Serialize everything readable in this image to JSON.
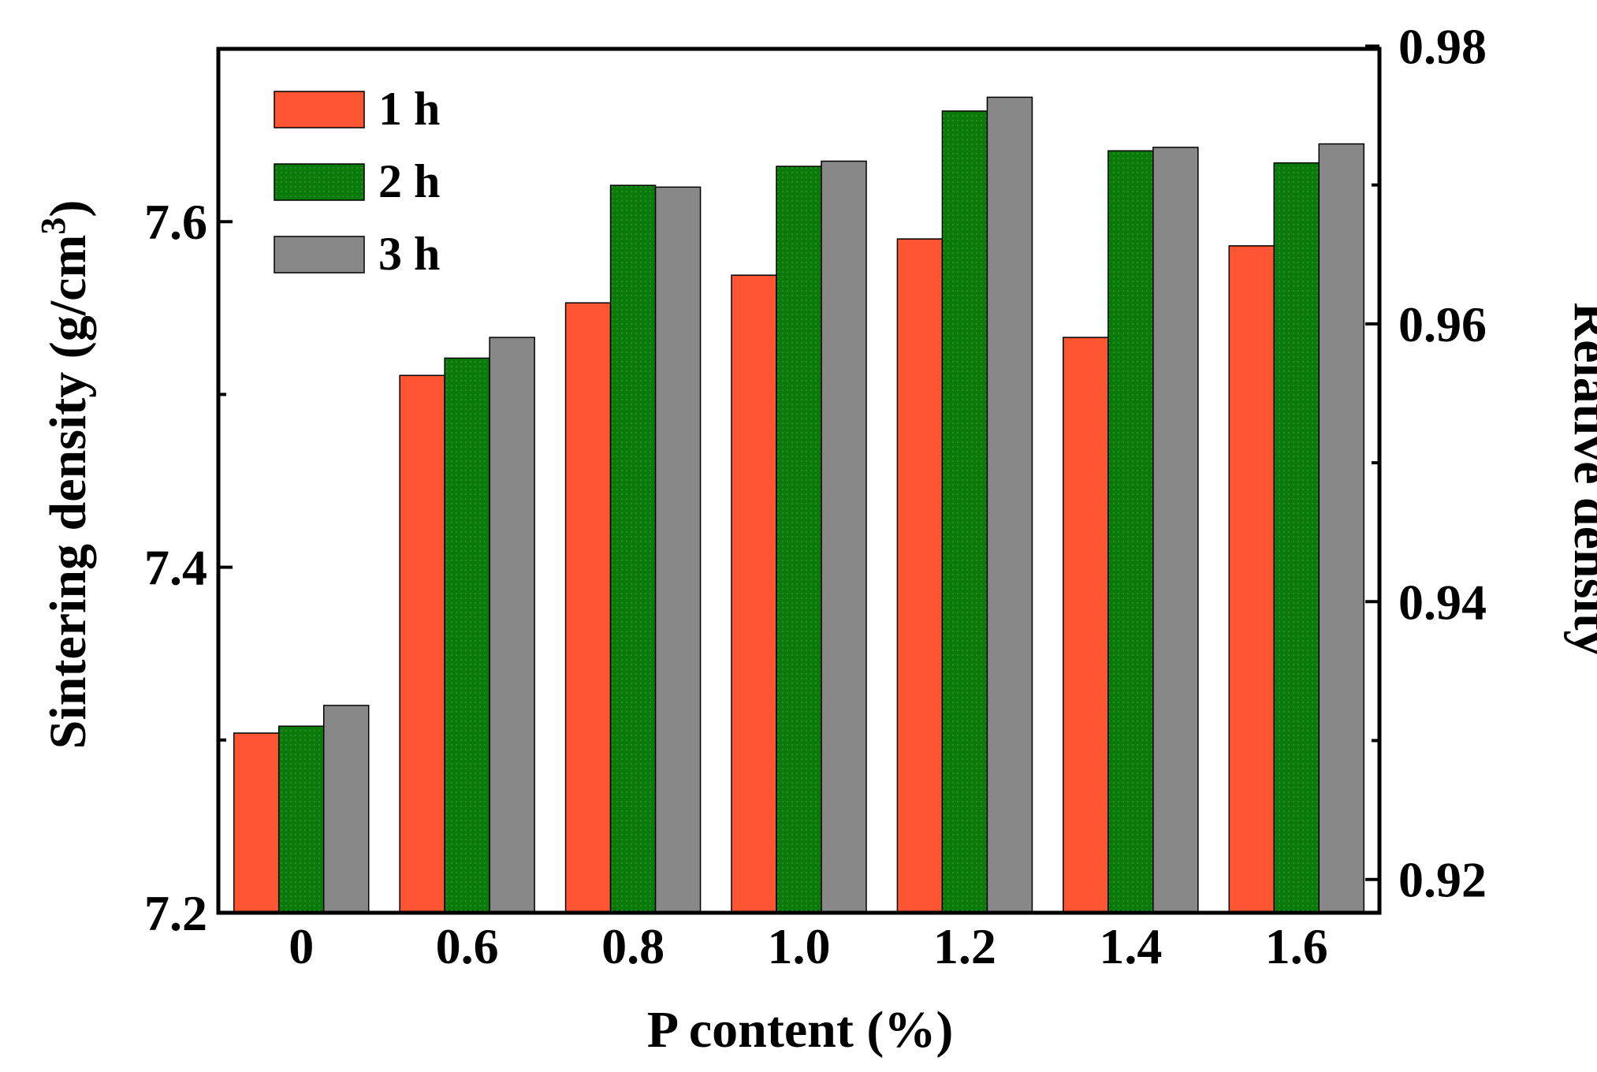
{
  "chart_data": {
    "type": "bar",
    "title": "",
    "xlabel": "P content (%)",
    "ylabel": "Sintering density (g/cm",
    "ylabel_superscript": "3",
    "ylabel_close": ")",
    "y2label": "Relative density",
    "categories": [
      "0",
      "0.6",
      "0.8",
      "1.0",
      "1.2",
      "1.4",
      "1.6"
    ],
    "ylim": [
      7.2,
      7.7
    ],
    "yticks": [
      "7.2",
      "7.4",
      "7.6"
    ],
    "y2lim": [
      0.9176,
      0.9798
    ],
    "y2ticks": [
      "0.92",
      "0.94",
      "0.96",
      "0.98"
    ],
    "legend_position": "top-left",
    "grid": false,
    "series": [
      {
        "name": "1 h",
        "color": "#ff5533",
        "values": [
          7.304,
          7.511,
          7.553,
          7.569,
          7.59,
          7.533,
          7.586
        ]
      },
      {
        "name": "2 h",
        "color": "#0a7a0a",
        "values": [
          7.308,
          7.521,
          7.621,
          7.632,
          7.664,
          7.641,
          7.634
        ]
      },
      {
        "name": "3 h",
        "color": "#888888",
        "values": [
          7.32,
          7.533,
          7.62,
          7.635,
          7.672,
          7.643,
          7.645
        ]
      }
    ]
  }
}
